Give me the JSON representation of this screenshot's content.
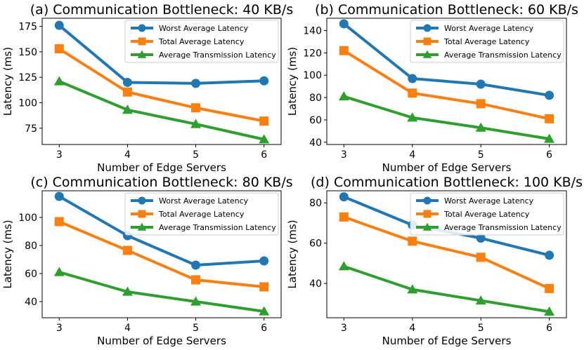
{
  "chart_data": [
    {
      "type": "line",
      "title": "(a) Communication Bottleneck: 40 KB/s",
      "xlabel": "Number of Edge Servers",
      "ylabel": "Latency (ms)",
      "x": [
        3,
        4,
        5,
        6
      ],
      "xlim": [
        2.75,
        6.25
      ],
      "ylim": [
        59,
        183
      ],
      "yticks": [
        75,
        100,
        125,
        150,
        175
      ],
      "legend": "top-right",
      "series": [
        {
          "name": "Worst Average Latency",
          "color": "#1f77b4",
          "marker": "circle",
          "values": [
            176,
            120,
            119,
            121.5
          ]
        },
        {
          "name": "Total Average Latency",
          "color": "#ff7f0e",
          "marker": "square",
          "values": [
            153,
            110.5,
            95,
            82
          ]
        },
        {
          "name": "Average Transmission Latency",
          "color": "#2ca02c",
          "marker": "triangle",
          "values": [
            121,
            93,
            79,
            64
          ]
        }
      ]
    },
    {
      "type": "line",
      "title": "(b) Communication Bottleneck: 60 KB/s",
      "xlabel": "Number of Edge Servers",
      "ylabel": "Latency (ms)",
      "x": [
        3,
        4,
        5,
        6
      ],
      "xlim": [
        2.75,
        6.25
      ],
      "ylim": [
        38,
        151
      ],
      "yticks": [
        40,
        60,
        80,
        100,
        120,
        140
      ],
      "legend": "top-right",
      "series": [
        {
          "name": "Worst Average Latency",
          "color": "#1f77b4",
          "marker": "circle",
          "values": [
            146,
            97,
            92,
            82
          ]
        },
        {
          "name": "Total Average Latency",
          "color": "#ff7f0e",
          "marker": "square",
          "values": [
            122,
            84,
            74.5,
            61
          ]
        },
        {
          "name": "Average Transmission Latency",
          "color": "#2ca02c",
          "marker": "triangle",
          "values": [
            81,
            62,
            53,
            43
          ]
        }
      ]
    },
    {
      "type": "line",
      "title": "(c) Communication Bottleneck: 80 KB/s",
      "xlabel": "Number of Edge Servers",
      "ylabel": "Latency (ms)",
      "x": [
        3,
        4,
        5,
        6
      ],
      "xlim": [
        2.75,
        6.25
      ],
      "ylim": [
        28.5,
        119
      ],
      "yticks": [
        40,
        60,
        80,
        100
      ],
      "legend": "top-right",
      "series": [
        {
          "name": "Worst Average Latency",
          "color": "#1f77b4",
          "marker": "circle",
          "values": [
            115,
            87,
            66,
            69
          ]
        },
        {
          "name": "Total Average Latency",
          "color": "#ff7f0e",
          "marker": "square",
          "values": [
            97,
            76.5,
            55.5,
            50.5
          ]
        },
        {
          "name": "Average Transmission Latency",
          "color": "#2ca02c",
          "marker": "triangle",
          "values": [
            61,
            47,
            40,
            33
          ]
        }
      ]
    },
    {
      "type": "line",
      "title": "(d) Communication Bottleneck: 100 KB/s",
      "xlabel": "Number of Edge Servers",
      "ylabel": "Latency (ms)",
      "x": [
        3,
        4,
        5,
        6
      ],
      "xlim": [
        2.75,
        6.25
      ],
      "ylim": [
        23,
        86
      ],
      "yticks": [
        40,
        60,
        80
      ],
      "legend": "top-right",
      "series": [
        {
          "name": "Worst Average Latency",
          "color": "#1f77b4",
          "marker": "circle",
          "values": [
            83,
            69,
            62.5,
            54
          ]
        },
        {
          "name": "Total Average Latency",
          "color": "#ff7f0e",
          "marker": "square",
          "values": [
            73,
            61,
            53,
            37.5
          ]
        },
        {
          "name": "Average Transmission Latency",
          "color": "#2ca02c",
          "marker": "triangle",
          "values": [
            48.5,
            37,
            31.5,
            26
          ]
        }
      ]
    }
  ]
}
